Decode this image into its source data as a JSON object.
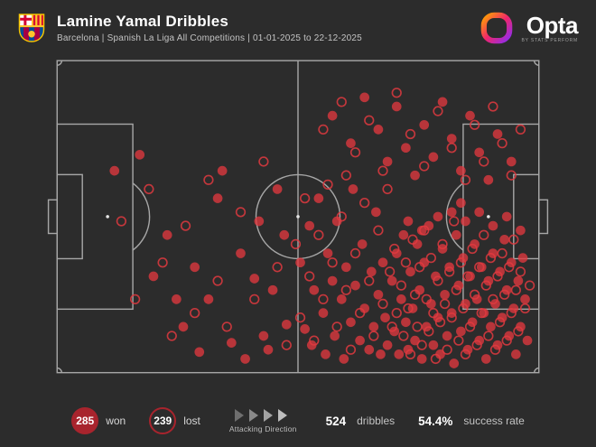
{
  "header": {
    "title": "Lamine Yamal Dribbles",
    "subtitle": "Barcelona | Spanish La Liga All Competitions | 01-01-2025 to 22-12-2025"
  },
  "branding": {
    "club_crest": "fc-barcelona-crest",
    "opta_wordmark": "Opta",
    "opta_sub": "BY STATS PERFORM"
  },
  "legend": {
    "won_count": "285",
    "won_label": "won",
    "lost_count": "239",
    "lost_label": "lost",
    "attacking_direction_label": "Attacking Direction",
    "total_count": "524",
    "total_label": "dribbles",
    "success_rate": "54.4%",
    "success_rate_label": "success rate"
  },
  "colors": {
    "background": "#2c2c2c",
    "pitch_line": "#a6a6a6",
    "dribble_red": "#e0393f",
    "legend_red": "#a8242d"
  },
  "chart_data": {
    "type": "scatter",
    "title": "Lamine Yamal Dribbles",
    "subtitle": "Barcelona | Spanish La Liga All Competitions | 01-01-2025 to 22-12-2025",
    "pitch_units": {
      "x_range": [
        0,
        105
      ],
      "y_range": [
        0,
        68
      ],
      "attacking_direction": "left-to-right"
    },
    "summary": {
      "won": 285,
      "lost": 239,
      "total_dribbles": 524,
      "success_rate_pct": 54.4
    },
    "legend_position": "bottom",
    "series": [
      {
        "name": "won",
        "marker": "filled-circle",
        "points": [
          [
            12.5,
            24
          ],
          [
            18,
            20.5
          ],
          [
            21,
            47
          ],
          [
            24,
            38
          ],
          [
            26,
            52
          ],
          [
            27.5,
            58
          ],
          [
            30,
            45
          ],
          [
            31,
            63.5
          ],
          [
            33,
            52
          ],
          [
            35,
            30
          ],
          [
            36,
            24
          ],
          [
            38,
            61.5
          ],
          [
            40,
            42
          ],
          [
            41,
            65
          ],
          [
            43,
            47.5
          ],
          [
            44,
            35
          ],
          [
            45,
            60
          ],
          [
            46,
            63
          ],
          [
            47,
            50
          ],
          [
            48,
            28
          ],
          [
            49.5,
            38
          ],
          [
            50,
            57.5
          ],
          [
            53,
            44
          ],
          [
            54,
            58.5
          ],
          [
            55,
            36
          ],
          [
            55.5,
            62
          ],
          [
            56,
            50
          ],
          [
            57,
            30
          ],
          [
            58,
            55
          ],
          [
            58.5,
            64
          ],
          [
            59,
            42
          ],
          [
            60,
            48
          ],
          [
            60.5,
            60
          ],
          [
            61,
            35
          ],
          [
            62,
            52
          ],
          [
            62.5,
            65
          ],
          [
            63,
            45
          ],
          [
            64,
            57
          ],
          [
            64.5,
            28
          ],
          [
            65,
            49
          ],
          [
            66,
            61
          ],
          [
            66.5,
            40
          ],
          [
            67,
            54
          ],
          [
            68,
            63
          ],
          [
            68.5,
            46
          ],
          [
            69,
            58
          ],
          [
            69.5,
            33
          ],
          [
            70,
            51
          ],
          [
            70.5,
            64
          ],
          [
            71,
            44
          ],
          [
            71.5,
            56
          ],
          [
            72,
            62
          ],
          [
            73,
            48
          ],
          [
            73.5,
            59
          ],
          [
            74,
            42
          ],
          [
            74.5,
            64
          ],
          [
            75,
            52
          ],
          [
            75.5,
            38
          ],
          [
            76,
            57
          ],
          [
            76.5,
            63
          ],
          [
            77,
            46
          ],
          [
            77.5,
            54
          ],
          [
            78,
            61
          ],
          [
            78.5,
            40
          ],
          [
            79,
            50
          ],
          [
            79.5,
            65
          ],
          [
            80,
            44
          ],
          [
            80.5,
            58
          ],
          [
            81,
            36
          ],
          [
            81.5,
            53
          ],
          [
            82,
            62
          ],
          [
            82.5,
            47
          ],
          [
            83,
            56
          ],
          [
            83.5,
            64
          ],
          [
            84,
            41
          ],
          [
            84.5,
            51
          ],
          [
            85,
            60
          ],
          [
            85.5,
            45
          ],
          [
            86,
            55
          ],
          [
            86.5,
            66
          ],
          [
            87,
            38
          ],
          [
            87.5,
            49
          ],
          [
            88,
            59
          ],
          [
            88.5,
            43
          ],
          [
            89,
            53
          ],
          [
            89.5,
            63
          ],
          [
            90,
            47
          ],
          [
            90.5,
            57
          ],
          [
            91,
            40
          ],
          [
            91.5,
            52
          ],
          [
            92,
            61
          ],
          [
            92.5,
            45
          ],
          [
            93,
            55
          ],
          [
            93.5,
            65
          ],
          [
            94,
            48
          ],
          [
            94.5,
            58
          ],
          [
            95,
            42
          ],
          [
            95.5,
            53
          ],
          [
            96,
            62
          ],
          [
            96.5,
            46
          ],
          [
            97,
            56
          ],
          [
            97.5,
            39
          ],
          [
            98,
            50
          ],
          [
            98.5,
            60
          ],
          [
            99,
            44
          ],
          [
            99.5,
            54
          ],
          [
            100,
            64
          ],
          [
            100.5,
            48
          ],
          [
            101,
            58
          ],
          [
            101.5,
            43
          ],
          [
            102,
            52
          ],
          [
            102.5,
            61
          ],
          [
            76.5,
            35
          ],
          [
            79.5,
            37
          ],
          [
            83,
            34
          ],
          [
            86,
            33
          ],
          [
            89,
            35
          ],
          [
            92,
            33
          ],
          [
            95,
            36
          ],
          [
            98,
            34
          ],
          [
            101,
            37
          ],
          [
            88,
            31
          ],
          [
            60,
            12
          ],
          [
            64,
            18
          ],
          [
            67,
            8
          ],
          [
            70,
            15
          ],
          [
            72,
            22
          ],
          [
            74,
            10
          ],
          [
            76,
            19
          ],
          [
            78,
            25
          ],
          [
            80,
            14
          ],
          [
            82,
            21
          ],
          [
            84,
            9
          ],
          [
            86,
            17
          ],
          [
            88,
            24
          ],
          [
            90,
            12
          ],
          [
            92,
            20
          ],
          [
            94,
            26
          ],
          [
            96,
            16
          ],
          [
            99,
            22
          ]
        ]
      },
      {
        "name": "lost",
        "marker": "open-circle",
        "points": [
          [
            14,
            35
          ],
          [
            17,
            52
          ],
          [
            20,
            28
          ],
          [
            23,
            44
          ],
          [
            25,
            60
          ],
          [
            28,
            36
          ],
          [
            30,
            55
          ],
          [
            33,
            26
          ],
          [
            35,
            48
          ],
          [
            37,
            58
          ],
          [
            40,
            33
          ],
          [
            43,
            52
          ],
          [
            45,
            22
          ],
          [
            48,
            45
          ],
          [
            50,
            62
          ],
          [
            52,
            40
          ],
          [
            53,
            56
          ],
          [
            54,
            30
          ],
          [
            55,
            47
          ],
          [
            56,
            61
          ],
          [
            57,
            38
          ],
          [
            58,
            52
          ],
          [
            59,
            27
          ],
          [
            60,
            44
          ],
          [
            61,
            58
          ],
          [
            62,
            34
          ],
          [
            63,
            50
          ],
          [
            64,
            63
          ],
          [
            65,
            42
          ],
          [
            66,
            55
          ],
          [
            67,
            31
          ],
          [
            68,
            48
          ],
          [
            69,
            60
          ],
          [
            70,
            37
          ],
          [
            71,
            53
          ],
          [
            72,
            28
          ],
          [
            72.5,
            46
          ],
          [
            73,
            58
          ],
          [
            73.5,
            41
          ],
          [
            74,
            55
          ],
          [
            75,
            49
          ],
          [
            75.5,
            60
          ],
          [
            76,
            44
          ],
          [
            76.5,
            54
          ],
          [
            77,
            64
          ],
          [
            77.5,
            39
          ],
          [
            78,
            51
          ],
          [
            78.5,
            58
          ],
          [
            79,
            45
          ],
          [
            79.5,
            62
          ],
          [
            80,
            37
          ],
          [
            80.5,
            52
          ],
          [
            81,
            59
          ],
          [
            81.5,
            43
          ],
          [
            82,
            55
          ],
          [
            82.5,
            65
          ],
          [
            83,
            48
          ],
          [
            83.5,
            57
          ],
          [
            84,
            40
          ],
          [
            84.5,
            53
          ],
          [
            85,
            63
          ],
          [
            85.5,
            46
          ],
          [
            86,
            56
          ],
          [
            86.5,
            35
          ],
          [
            87,
            50
          ],
          [
            87.5,
            61
          ],
          [
            88,
            44
          ],
          [
            88.5,
            54
          ],
          [
            89,
            64
          ],
          [
            89.5,
            47
          ],
          [
            90,
            58
          ],
          [
            90.5,
            41
          ],
          [
            91,
            51
          ],
          [
            91.5,
            62
          ],
          [
            92,
            45
          ],
          [
            92.5,
            55
          ],
          [
            93,
            38
          ],
          [
            93.5,
            49
          ],
          [
            94,
            60
          ],
          [
            94.5,
            43
          ],
          [
            95,
            52
          ],
          [
            95.5,
            63
          ],
          [
            96,
            47
          ],
          [
            96.5,
            57
          ],
          [
            97,
            42
          ],
          [
            97.5,
            51
          ],
          [
            98,
            61
          ],
          [
            98.5,
            45
          ],
          [
            99,
            55
          ],
          [
            99.5,
            39
          ],
          [
            100,
            50
          ],
          [
            100.5,
            59
          ],
          [
            101,
            46
          ],
          [
            102,
            54
          ],
          [
            103,
            49
          ],
          [
            58,
            15
          ],
          [
            62,
            9
          ],
          [
            65,
            20
          ],
          [
            68,
            13
          ],
          [
            71,
            24
          ],
          [
            74,
            7
          ],
          [
            77,
            16
          ],
          [
            80,
            23
          ],
          [
            83,
            11
          ],
          [
            86,
            19
          ],
          [
            89,
            26
          ],
          [
            91,
            14
          ],
          [
            93,
            22
          ],
          [
            95,
            10
          ],
          [
            97,
            18
          ],
          [
            99,
            25
          ],
          [
            101,
            15
          ],
          [
            63,
            25
          ]
        ]
      }
    ]
  }
}
